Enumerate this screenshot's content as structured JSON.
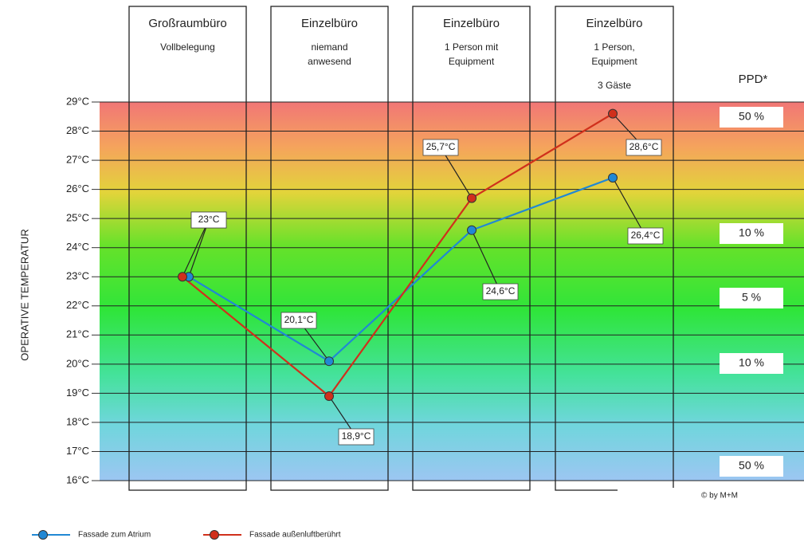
{
  "chart_data": {
    "type": "line",
    "y_label": "OPERATIVE TEMPERATUR",
    "categories": [
      "Großraumbüro",
      "Einzelbüro",
      "Einzelbüro",
      "Einzelbüro"
    ],
    "category_notes": [
      [
        "Vollbelegung"
      ],
      [
        "niemand",
        "anwesend"
      ],
      [
        "1 Person mit",
        "Equipment"
      ],
      [
        "1 Person,",
        "Equipment",
        "3 Gäste"
      ]
    ],
    "series": [
      {
        "name": "Fassade zum Atrium",
        "color": "#2188d4",
        "values": [
          23,
          20.1,
          24.6,
          26.4
        ],
        "value_labels": [
          "23°C",
          "20,1°C",
          "24,6°C",
          "26,4°C"
        ]
      },
      {
        "name": "Fassade außenluftberührt",
        "color": "#d0301c",
        "values": [
          23,
          18.9,
          25.7,
          28.6
        ],
        "value_labels": [
          "23°C",
          "18,9°C",
          "25,7°C",
          "28,6°C"
        ]
      }
    ],
    "ylim": [
      16,
      29
    ],
    "yticks": [
      {
        "value": 16,
        "label": "16°C"
      },
      {
        "value": 17,
        "label": "17°C"
      },
      {
        "value": 18,
        "label": "18°C"
      },
      {
        "value": 19,
        "label": "19°C"
      },
      {
        "value": 20,
        "label": "20°C"
      },
      {
        "value": 21,
        "label": "21°C"
      },
      {
        "value": 22,
        "label": "22°C"
      },
      {
        "value": 23,
        "label": "23°C"
      },
      {
        "value": 24,
        "label": "24°C"
      },
      {
        "value": 25,
        "label": "25°C"
      },
      {
        "value": 26,
        "label": "26°C"
      },
      {
        "value": 27,
        "label": "27°C"
      },
      {
        "value": 28,
        "label": "28°C"
      },
      {
        "value": 29,
        "label": "29°C"
      }
    ],
    "grid": true,
    "ppd": {
      "title": "PPD*",
      "levels": [
        {
          "value": 50,
          "label": "50 %"
        },
        {
          "value": 10,
          "label": "10 %"
        },
        {
          "value": 5,
          "label": "5 %"
        },
        {
          "value": 10,
          "label": "10 %"
        },
        {
          "value": 50,
          "label": "50 %"
        }
      ]
    },
    "credit": "© by M+M"
  }
}
